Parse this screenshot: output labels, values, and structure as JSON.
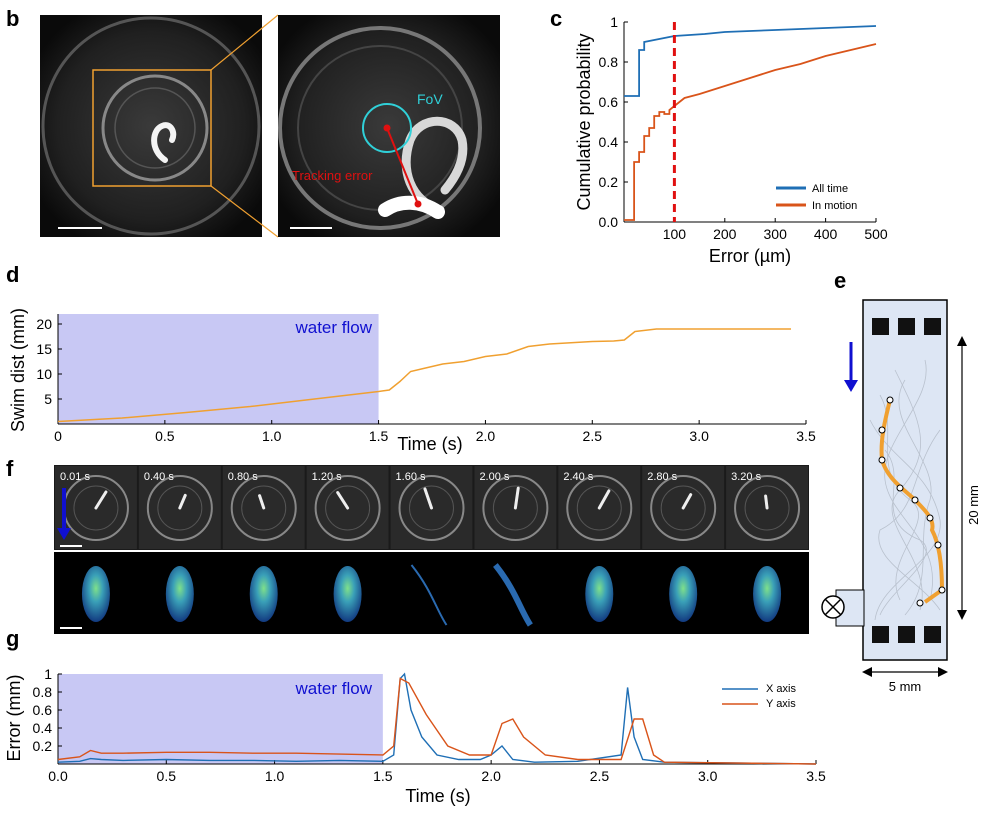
{
  "panel_labels": {
    "b": "b",
    "c": "c",
    "d": "d",
    "e": "e",
    "f": "f",
    "g": "g"
  },
  "panel_b": {
    "fov_label": "FoV",
    "tracking_label": "Tracking error"
  },
  "chart_data": [
    {
      "id": "c",
      "type": "line",
      "xlabel": "Error (µm)",
      "ylabel": "Cumulative probability",
      "xlim": [
        0,
        500
      ],
      "ylim": [
        0,
        1
      ],
      "xticks": [
        "100",
        "200",
        "300",
        "400",
        "500"
      ],
      "yticks": [
        "0.0",
        "0.2",
        "0.4",
        "0.6",
        "0.8",
        "1"
      ],
      "threshold_x": 100,
      "legend_position": "bottom-right",
      "series": [
        {
          "name": "All time",
          "color": "#1f6fb5",
          "x": [
            0,
            30,
            30,
            40,
            40,
            60,
            80,
            100,
            130,
            160,
            200,
            250,
            300,
            350,
            400,
            450,
            500
          ],
          "y": [
            0.63,
            0.63,
            0.86,
            0.86,
            0.9,
            0.91,
            0.92,
            0.93,
            0.935,
            0.94,
            0.95,
            0.955,
            0.96,
            0.965,
            0.97,
            0.975,
            0.98
          ]
        },
        {
          "name": "In motion",
          "color": "#d9541a",
          "x": [
            0,
            10,
            10,
            20,
            20,
            30,
            30,
            40,
            40,
            50,
            50,
            60,
            60,
            70,
            70,
            80,
            80,
            90,
            90,
            100,
            120,
            150,
            200,
            250,
            300,
            350,
            400,
            450,
            500
          ],
          "y": [
            0.01,
            0.01,
            0.01,
            0.01,
            0.3,
            0.3,
            0.35,
            0.35,
            0.43,
            0.43,
            0.47,
            0.47,
            0.53,
            0.53,
            0.55,
            0.55,
            0.54,
            0.54,
            0.56,
            0.58,
            0.62,
            0.64,
            0.68,
            0.72,
            0.76,
            0.79,
            0.83,
            0.86,
            0.89
          ]
        }
      ]
    },
    {
      "id": "d",
      "type": "line",
      "xlabel": "Time (s)",
      "ylabel": "Swim dist (mm)",
      "xlim": [
        0,
        3.5
      ],
      "ylim": [
        0,
        22
      ],
      "xticks": [
        "0",
        "0.5",
        "1.0",
        "1.5",
        "2.0",
        "2.5",
        "3.0",
        "3.5"
      ],
      "yticks": [
        "5",
        "10",
        "15",
        "20"
      ],
      "shade_label": "water flow",
      "shade_range": [
        0,
        1.5
      ],
      "series": [
        {
          "name": "",
          "color": "#f0a030",
          "x": [
            0,
            0.3,
            0.6,
            0.9,
            1.2,
            1.5,
            1.55,
            1.6,
            1.65,
            1.7,
            1.8,
            1.9,
            2.0,
            2.1,
            2.2,
            2.3,
            2.5,
            2.6,
            2.65,
            2.7,
            2.8,
            3.0,
            3.2,
            3.43
          ],
          "y": [
            0.5,
            1.2,
            2.3,
            3.5,
            5.0,
            6.5,
            6.8,
            8.5,
            10.5,
            11.0,
            12.0,
            12.5,
            13.5,
            14.0,
            15.5,
            16.0,
            16.5,
            16.6,
            16.8,
            18.5,
            19.0,
            19.0,
            19.0,
            19.0
          ]
        }
      ]
    },
    {
      "id": "g",
      "type": "line",
      "xlabel": "Time (s)",
      "ylabel": "Error (mm)",
      "xlim": [
        0,
        3.5
      ],
      "ylim": [
        0,
        1
      ],
      "xticks": [
        "0.0",
        "0.5",
        "1.0",
        "1.5",
        "2.0",
        "2.5",
        "3.0",
        "3.5"
      ],
      "yticks": [
        "0.2",
        "0.4",
        "0.6",
        "0.8",
        "1"
      ],
      "shade_label": "water flow",
      "shade_range": [
        0,
        1.5
      ],
      "legend_position": "top-right",
      "series": [
        {
          "name": "X axis",
          "color": "#1f6fb5",
          "x": [
            0,
            0.1,
            0.15,
            0.2,
            0.3,
            0.5,
            0.7,
            0.9,
            1.1,
            1.3,
            1.5,
            1.55,
            1.58,
            1.6,
            1.63,
            1.68,
            1.75,
            1.85,
            1.95,
            2.0,
            2.05,
            2.1,
            2.2,
            2.4,
            2.6,
            2.63,
            2.66,
            2.7,
            2.8,
            3.5
          ],
          "y": [
            0.02,
            0.03,
            0.06,
            0.05,
            0.04,
            0.05,
            0.04,
            0.04,
            0.03,
            0.04,
            0.03,
            0.1,
            0.95,
            1.0,
            0.6,
            0.3,
            0.1,
            0.05,
            0.05,
            0.1,
            0.2,
            0.05,
            0.02,
            0.03,
            0.1,
            0.85,
            0.3,
            0.05,
            0.02,
            0.0
          ]
        },
        {
          "name": "Y axis",
          "color": "#d9541a",
          "x": [
            0,
            0.1,
            0.15,
            0.2,
            0.3,
            0.5,
            0.7,
            0.9,
            1.1,
            1.3,
            1.5,
            1.55,
            1.58,
            1.62,
            1.7,
            1.8,
            1.9,
            2.0,
            2.05,
            2.1,
            2.15,
            2.25,
            2.4,
            2.6,
            2.66,
            2.7,
            2.75,
            2.8,
            3.5
          ],
          "y": [
            0.05,
            0.08,
            0.15,
            0.12,
            0.12,
            0.13,
            0.13,
            0.12,
            0.12,
            0.11,
            0.1,
            0.2,
            0.95,
            0.9,
            0.55,
            0.2,
            0.1,
            0.1,
            0.45,
            0.5,
            0.3,
            0.1,
            0.05,
            0.05,
            0.5,
            0.5,
            0.1,
            0.02,
            0.0
          ]
        }
      ]
    }
  ],
  "panel_e": {
    "flow_arrow": "down",
    "width_label": "5 mm",
    "height_label": "20 mm",
    "pump_icon": "crossed-circle-icon"
  },
  "panel_f": {
    "timestamps": [
      "0.01 s",
      "0.40 s",
      "0.80 s",
      "1.20 s",
      "1.60 s",
      "2.00 s",
      "2.40 s",
      "2.80 s",
      "3.20 s"
    ]
  }
}
